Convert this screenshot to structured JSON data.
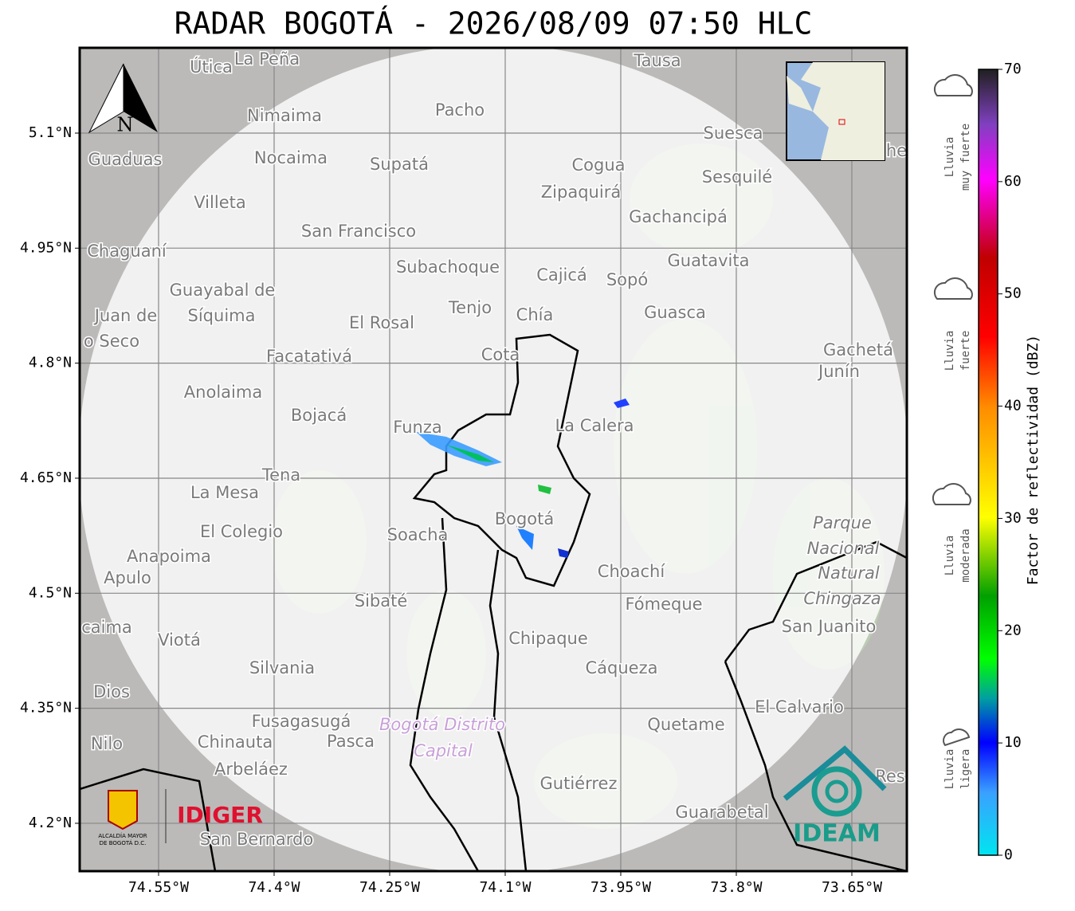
{
  "title": "RADAR BOGOTÁ - 2026/08/09 07:50 HLC",
  "map": {
    "xlim": [
      -74.6524,
      -73.5786
    ],
    "ylim": [
      4.1376,
      5.2112
    ],
    "xticks": [
      {
        "value": -74.55,
        "label": "74.55°W"
      },
      {
        "value": -74.4,
        "label": "74.4°W"
      },
      {
        "value": -74.25,
        "label": "74.25°W"
      },
      {
        "value": -74.1,
        "label": "74.1°W"
      },
      {
        "value": -73.95,
        "label": "73.95°W"
      },
      {
        "value": -73.8,
        "label": "73.8°W"
      },
      {
        "value": -73.65,
        "label": "73.65°W"
      }
    ],
    "yticks": [
      {
        "value": 5.1,
        "label": "5.1°N"
      },
      {
        "value": 4.95,
        "label": "4.95°N"
      },
      {
        "value": 4.8,
        "label": "4.8°N"
      },
      {
        "value": 4.65,
        "label": "4.65°N"
      },
      {
        "value": 4.5,
        "label": "4.5°N"
      },
      {
        "value": 4.35,
        "label": "4.35°N"
      },
      {
        "value": 4.2,
        "label": "4.2°N"
      }
    ],
    "grid": true,
    "places": [
      "Útica",
      "La Peña",
      "Tausa",
      "Pacho",
      "Nimaima",
      "Guaduas",
      "Nocaima",
      "Supatá",
      "Cogua",
      "Suesca",
      "Zipaquirá",
      "Sesquilé",
      "Villeta",
      "Gachancipá",
      "San Francisco",
      "Chaguaní",
      "Guatavita",
      "Subachoque",
      "Cajicá",
      "Sopó",
      "Guayabal de",
      "Tenjo",
      "Guasca",
      "Juan de",
      "Síquima",
      "El Rosal",
      "Chía",
      "o Seco",
      "Cota",
      "Facatativá",
      "Gachetá",
      "Junín",
      "Anolaima",
      "Bojacá",
      "Funza",
      "La Calera",
      "Tena",
      "La Mesa",
      "Bogotá",
      "Soacha",
      "Parque",
      "El Colegio",
      "Nacional",
      "Anapoima",
      "Apulo",
      "Choachí",
      "Natural",
      "Chingaza",
      "Sibaté",
      "Fómeque",
      "caima",
      "San Juanito",
      "Viotá",
      "Chipaque",
      "Silvania",
      "Cáqueza",
      "Dios",
      "El Calvario",
      "Fusagasugá",
      "Quetame",
      "Bogotá Distrito",
      "Nilo",
      "Chinauta",
      "Pasca",
      "Capital",
      "Arbeláez",
      "Res",
      "Gutiérrez",
      "Guarabetal",
      "San Bernardo",
      "he"
    ],
    "north": "N"
  },
  "colorbar": {
    "label": "Factor de reflectividad (dBZ)",
    "lim": [
      0,
      70
    ],
    "ticks": [
      0,
      10,
      20,
      30,
      40,
      50,
      60,
      70
    ]
  },
  "rain_levels": [
    [
      "Lluvia",
      "muy fuerte"
    ],
    [
      "Lluvia",
      "fuerte"
    ],
    [
      "Lluvia",
      "moderada"
    ],
    [
      "Lluvia",
      "ligera"
    ]
  ],
  "logos": {
    "alcaldia": [
      "ALCALDÍA MAYOR",
      "DE BOGOTÁ D.C."
    ],
    "idiger": "IDIGER",
    "ideam": "IDEAM"
  }
}
